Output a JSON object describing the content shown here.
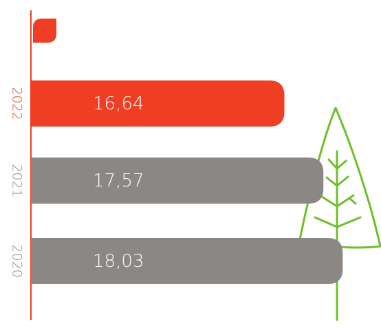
{
  "chart_data": {
    "type": "bar",
    "orientation": "horizontal",
    "categories": [
      "2022",
      "2021",
      "2020"
    ],
    "values": [
      16.64,
      17.57,
      18.03
    ],
    "value_labels": [
      "16,64",
      "17,57",
      "18,03"
    ],
    "colors": [
      "#ef3e23",
      "#8b8785",
      "#8b8785"
    ],
    "xlim": [
      10.6,
      18.5
    ]
  }
}
